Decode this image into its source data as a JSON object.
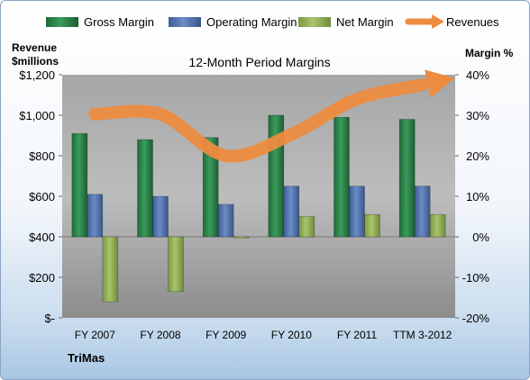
{
  "legend": {
    "items": [
      {
        "label": "Gross Margin",
        "color": "#2a7a45",
        "kind": "bar"
      },
      {
        "label": "Operating Margin",
        "color": "#4f6fa8",
        "kind": "bar"
      },
      {
        "label": "Net Margin",
        "color": "#8fad55",
        "kind": "bar"
      },
      {
        "label": "Revenues",
        "color": "#ed8b3f",
        "kind": "arrow"
      }
    ]
  },
  "footer": {
    "company": "TriMas"
  },
  "chart_data": {
    "type": "bar",
    "title": "12-Month Period Margins",
    "ylabel_left": "Revenue\n$millions",
    "ylabel_right": "Margin %",
    "categories": [
      "FY 2007",
      "FY 2008",
      "FY 2009",
      "FY 2010",
      "FY 2011",
      "TTM 3-2012"
    ],
    "left_axis": {
      "min": 0,
      "max": 1200,
      "ticks": [
        0,
        200,
        400,
        600,
        800,
        1000,
        1200
      ],
      "tick_labels": [
        "$-",
        "$200",
        "$400",
        "$600",
        "$800",
        "$1,000",
        "$1,200"
      ]
    },
    "right_axis": {
      "min": -20,
      "max": 40,
      "ticks": [
        -20,
        -10,
        0,
        10,
        20,
        30,
        40
      ],
      "tick_labels": [
        "-20%",
        "-10%",
        "0%",
        "10%",
        "20%",
        "30%",
        "40%"
      ]
    },
    "series": [
      {
        "name": "Gross Margin",
        "axis": "right",
        "values": [
          25.5,
          24.0,
          24.5,
          30.0,
          29.5,
          29.0
        ]
      },
      {
        "name": "Operating Margin",
        "axis": "right",
        "values": [
          10.5,
          10.0,
          8.0,
          12.5,
          12.5,
          12.5
        ]
      },
      {
        "name": "Net Margin",
        "axis": "right",
        "values": [
          -16.0,
          -13.5,
          -0.3,
          5.0,
          5.5,
          5.5
        ]
      },
      {
        "name": "Revenues",
        "axis": "left",
        "values": [
          1005,
          1005,
          800,
          905,
          1080,
          1150
        ]
      }
    ],
    "grid": false,
    "legend_position": "top"
  }
}
